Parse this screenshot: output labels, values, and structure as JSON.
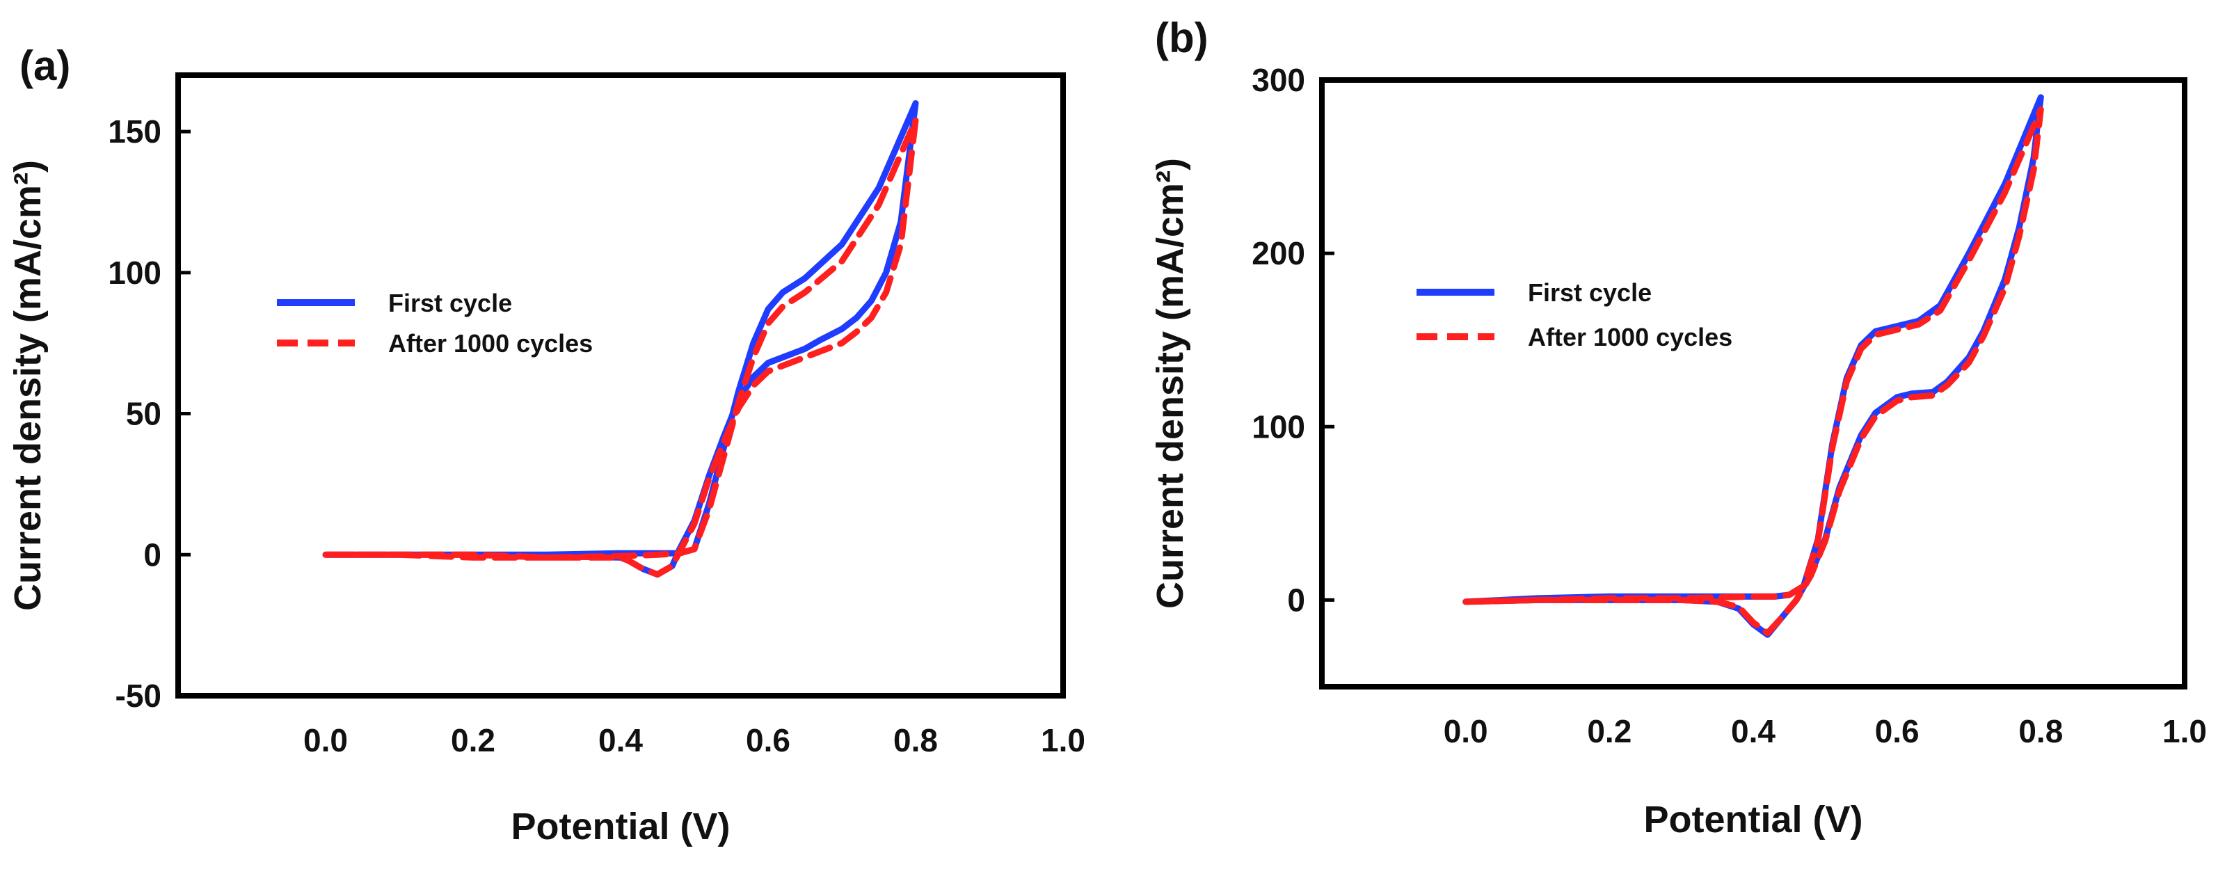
{
  "figure": {
    "panels": [
      {
        "label": "(a)"
      },
      {
        "label": "(b)"
      }
    ]
  },
  "chart_data": [
    {
      "type": "line",
      "panel": "(a)",
      "xlabel": "Potential (V)",
      "ylabel": "Current density (mA/cm²)",
      "xlim": [
        -0.2,
        1.0
      ],
      "ylim": [
        -50,
        170
      ],
      "xticks": [
        0.0,
        0.2,
        0.4,
        0.6,
        0.8,
        1.0
      ],
      "xtick_labels": [
        "0.0",
        "0.2",
        "0.4",
        "0.6",
        "0.8",
        "1.0"
      ],
      "yticks": [
        -50,
        0,
        50,
        100,
        150
      ],
      "ytick_labels": [
        "-50",
        "0",
        "50",
        "100",
        "150"
      ],
      "legend": {
        "position": "center-left"
      },
      "series": [
        {
          "name": "First cycle",
          "color": "#1f3cff",
          "style": "solid",
          "x": [
            0.0,
            0.1,
            0.2,
            0.3,
            0.4,
            0.45,
            0.48,
            0.5,
            0.52,
            0.54,
            0.56,
            0.58,
            0.6,
            0.62,
            0.65,
            0.7,
            0.75,
            0.8,
            0.78,
            0.76,
            0.74,
            0.72,
            0.7,
            0.67,
            0.65,
            0.62,
            0.6,
            0.58,
            0.56,
            0.54,
            0.52,
            0.5,
            0.48,
            0.47,
            0.45,
            0.43,
            0.41,
            0.4,
            0.3,
            0.2,
            0.1,
            0.0
          ],
          "y": [
            0,
            0,
            0,
            0,
            0.5,
            0.5,
            0.5,
            2,
            18,
            38,
            58,
            75,
            87,
            93,
            98,
            110,
            130,
            160,
            118,
            100,
            90,
            84,
            80,
            76,
            73,
            70,
            68,
            63,
            55,
            42,
            28,
            12,
            2,
            -4,
            -7,
            -5,
            -2,
            -1,
            -0.5,
            0,
            0,
            0
          ]
        },
        {
          "name": "After 1000 cycles",
          "color": "#ff1f1f",
          "style": "dashed",
          "x": [
            0.0,
            0.1,
            0.2,
            0.3,
            0.4,
            0.45,
            0.48,
            0.5,
            0.52,
            0.54,
            0.56,
            0.58,
            0.6,
            0.62,
            0.65,
            0.7,
            0.75,
            0.8,
            0.78,
            0.76,
            0.74,
            0.72,
            0.7,
            0.67,
            0.65,
            0.62,
            0.6,
            0.58,
            0.56,
            0.54,
            0.52,
            0.5,
            0.48,
            0.47,
            0.45,
            0.43,
            0.41,
            0.4,
            0.3,
            0.2,
            0.1,
            0.0
          ],
          "y": [
            0,
            0,
            0,
            -1,
            -0.5,
            0,
            0.5,
            2,
            16,
            35,
            54,
            70,
            82,
            88,
            93,
            104,
            124,
            154,
            110,
            93,
            84,
            79,
            75,
            72,
            70,
            67,
            65,
            60,
            52,
            40,
            27,
            11,
            1,
            -4,
            -7,
            -5,
            -2,
            -1,
            -1,
            -1,
            0,
            0
          ]
        }
      ]
    },
    {
      "type": "line",
      "panel": "(b)",
      "xlabel": "Potential (V)",
      "ylabel": "Current density (mA/cm²)",
      "xlim": [
        -0.2,
        1.0
      ],
      "ylim": [
        -50,
        300
      ],
      "xticks": [
        0.0,
        0.2,
        0.4,
        0.6,
        0.8,
        1.0
      ],
      "xtick_labels": [
        "0.0",
        "0.2",
        "0.4",
        "0.6",
        "0.8",
        "1.0"
      ],
      "yticks": [
        0,
        100,
        200,
        300
      ],
      "ytick_labels": [
        "0",
        "100",
        "200",
        "300"
      ],
      "legend": {
        "position": "center-left"
      },
      "series": [
        {
          "name": "First cycle",
          "color": "#1f3cff",
          "style": "solid",
          "x": [
            0.0,
            0.1,
            0.2,
            0.3,
            0.4,
            0.43,
            0.45,
            0.47,
            0.49,
            0.51,
            0.53,
            0.55,
            0.57,
            0.6,
            0.63,
            0.66,
            0.7,
            0.75,
            0.8,
            0.79,
            0.77,
            0.75,
            0.72,
            0.7,
            0.67,
            0.65,
            0.62,
            0.6,
            0.57,
            0.55,
            0.52,
            0.5,
            0.48,
            0.46,
            0.44,
            0.42,
            0.4,
            0.38,
            0.35,
            0.3,
            0.2,
            0.1,
            0.0
          ],
          "y": [
            -1,
            1,
            2,
            2,
            2,
            2,
            3,
            8,
            35,
            90,
            128,
            147,
            155,
            158,
            161,
            170,
            200,
            240,
            290,
            255,
            215,
            185,
            155,
            140,
            126,
            120,
            119,
            117,
            108,
            95,
            65,
            35,
            15,
            0,
            -10,
            -20,
            -14,
            -5,
            -1,
            0,
            0,
            0,
            -1
          ]
        },
        {
          "name": "After 1000 cycles",
          "color": "#ff1f1f",
          "style": "dashed",
          "x": [
            0.0,
            0.1,
            0.2,
            0.3,
            0.4,
            0.43,
            0.45,
            0.47,
            0.49,
            0.51,
            0.53,
            0.55,
            0.57,
            0.6,
            0.63,
            0.66,
            0.7,
            0.75,
            0.8,
            0.79,
            0.77,
            0.75,
            0.72,
            0.7,
            0.67,
            0.65,
            0.62,
            0.6,
            0.57,
            0.55,
            0.52,
            0.5,
            0.48,
            0.46,
            0.44,
            0.42,
            0.4,
            0.38,
            0.35,
            0.3,
            0.2,
            0.1,
            0.0
          ],
          "y": [
            -1,
            0,
            1,
            1,
            2,
            2,
            3,
            8,
            34,
            88,
            126,
            145,
            153,
            156,
            159,
            167,
            196,
            235,
            283,
            248,
            210,
            180,
            152,
            137,
            124,
            118,
            117,
            115,
            106,
            93,
            63,
            34,
            14,
            0,
            -10,
            -19,
            -13,
            -4,
            -1,
            0,
            0,
            0,
            -1
          ]
        }
      ]
    }
  ]
}
